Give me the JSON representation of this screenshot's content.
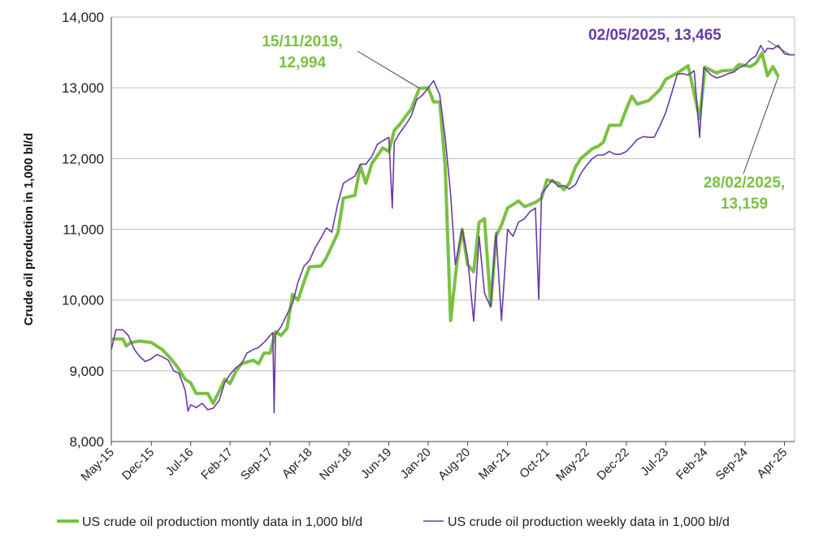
{
  "chart_data": {
    "type": "line",
    "title": "",
    "xlabel": "",
    "ylabel": "Crude oil production in 1,000 bl/d",
    "ylim": [
      8000,
      14000
    ],
    "yticks": [
      8000,
      9000,
      10000,
      11000,
      12000,
      13000,
      14000
    ],
    "ytick_labels": [
      "8,000",
      "9,000",
      "10,000",
      "11,000",
      "12,000",
      "13,000",
      "14,000"
    ],
    "xlim": [
      2015.33,
      2025.4
    ],
    "xticks": [
      {
        "label": "May-15",
        "pos": 2015.33
      },
      {
        "label": "Dec-15",
        "pos": 2015.92
      },
      {
        "label": "Jul-16",
        "pos": 2016.5
      },
      {
        "label": "Feb-17",
        "pos": 2017.08
      },
      {
        "label": "Sep-17",
        "pos": 2017.67
      },
      {
        "label": "Apr-18",
        "pos": 2018.25
      },
      {
        "label": "Nov-18",
        "pos": 2018.83
      },
      {
        "label": "Jun-19",
        "pos": 2019.42
      },
      {
        "label": "Jan-20",
        "pos": 2020.0
      },
      {
        "label": "Aug-20",
        "pos": 2020.58
      },
      {
        "label": "Mar-21",
        "pos": 2021.17
      },
      {
        "label": "Oct-21",
        "pos": 2021.75
      },
      {
        "label": "May-22",
        "pos": 2022.33
      },
      {
        "label": "Dec-22",
        "pos": 2022.92
      },
      {
        "label": "Jul-23",
        "pos": 2023.5
      },
      {
        "label": "Feb-24",
        "pos": 2024.08
      },
      {
        "label": "Sep-24",
        "pos": 2024.67
      },
      {
        "label": "Apr-25",
        "pos": 2025.25
      }
    ],
    "grid": true,
    "legend_position": "bottom",
    "colors": {
      "monthly": "#7ac143",
      "weekly": "#6a3aa7",
      "grid": "#bdbdbd",
      "axis": "#444444"
    },
    "series": [
      {
        "name": "US crude oil production montly data in 1,000 bl/d",
        "color": "#7ac143",
        "points": [
          [
            2015.33,
            9450
          ],
          [
            2015.5,
            9450
          ],
          [
            2015.55,
            9350
          ],
          [
            2015.62,
            9400
          ],
          [
            2015.75,
            9420
          ],
          [
            2015.92,
            9400
          ],
          [
            2016.08,
            9300
          ],
          [
            2016.2,
            9180
          ],
          [
            2016.3,
            9060
          ],
          [
            2016.42,
            8880
          ],
          [
            2016.5,
            8830
          ],
          [
            2016.58,
            8680
          ],
          [
            2016.75,
            8680
          ],
          [
            2016.83,
            8540
          ],
          [
            2016.92,
            8710
          ],
          [
            2017.0,
            8880
          ],
          [
            2017.08,
            8820
          ],
          [
            2017.17,
            9000
          ],
          [
            2017.25,
            9100
          ],
          [
            2017.42,
            9150
          ],
          [
            2017.5,
            9100
          ],
          [
            2017.58,
            9250
          ],
          [
            2017.67,
            9250
          ],
          [
            2017.75,
            9550
          ],
          [
            2017.83,
            9500
          ],
          [
            2017.92,
            9600
          ],
          [
            2018.0,
            10080
          ],
          [
            2018.08,
            10000
          ],
          [
            2018.17,
            10260
          ],
          [
            2018.25,
            10470
          ],
          [
            2018.42,
            10480
          ],
          [
            2018.5,
            10600
          ],
          [
            2018.67,
            10950
          ],
          [
            2018.75,
            11440
          ],
          [
            2018.92,
            11480
          ],
          [
            2019.0,
            11900
          ],
          [
            2019.08,
            11650
          ],
          [
            2019.17,
            11930
          ],
          [
            2019.33,
            12150
          ],
          [
            2019.42,
            12100
          ],
          [
            2019.5,
            12400
          ],
          [
            2019.58,
            12480
          ],
          [
            2019.67,
            12600
          ],
          [
            2019.75,
            12700
          ],
          [
            2019.87,
            12994
          ],
          [
            2020.0,
            13000
          ],
          [
            2020.08,
            12800
          ],
          [
            2020.17,
            12800
          ],
          [
            2020.25,
            11900
          ],
          [
            2020.33,
            9710
          ],
          [
            2020.42,
            10500
          ],
          [
            2020.5,
            11000
          ],
          [
            2020.58,
            10500
          ],
          [
            2020.67,
            10400
          ],
          [
            2020.75,
            11100
          ],
          [
            2020.83,
            11150
          ],
          [
            2020.92,
            9930
          ],
          [
            2021.0,
            10900
          ],
          [
            2021.08,
            11060
          ],
          [
            2021.17,
            11300
          ],
          [
            2021.33,
            11400
          ],
          [
            2021.42,
            11320
          ],
          [
            2021.58,
            11380
          ],
          [
            2021.67,
            11440
          ],
          [
            2021.75,
            11700
          ],
          [
            2021.92,
            11650
          ],
          [
            2022.0,
            11560
          ],
          [
            2022.08,
            11650
          ],
          [
            2022.17,
            11880
          ],
          [
            2022.25,
            12000
          ],
          [
            2022.42,
            12140
          ],
          [
            2022.5,
            12170
          ],
          [
            2022.58,
            12230
          ],
          [
            2022.67,
            12470
          ],
          [
            2022.83,
            12470
          ],
          [
            2022.92,
            12700
          ],
          [
            2023.0,
            12880
          ],
          [
            2023.08,
            12770
          ],
          [
            2023.25,
            12820
          ],
          [
            2023.42,
            12980
          ],
          [
            2023.5,
            13120
          ],
          [
            2023.67,
            13210
          ],
          [
            2023.83,
            13310
          ],
          [
            2024.0,
            12560
          ],
          [
            2024.08,
            13290
          ],
          [
            2024.25,
            13210
          ],
          [
            2024.33,
            13240
          ],
          [
            2024.5,
            13250
          ],
          [
            2024.58,
            13330
          ],
          [
            2024.75,
            13300
          ],
          [
            2024.83,
            13350
          ],
          [
            2024.92,
            13490
          ],
          [
            2025.0,
            13170
          ],
          [
            2025.08,
            13300
          ],
          [
            2025.16,
            13159
          ]
        ]
      },
      {
        "name": "US crude oil production weekly data in 1,000 bl/d",
        "color": "#6a3aa7",
        "points": [
          [
            2015.33,
            9300
          ],
          [
            2015.4,
            9580
          ],
          [
            2015.5,
            9580
          ],
          [
            2015.58,
            9500
          ],
          [
            2015.67,
            9300
          ],
          [
            2015.75,
            9200
          ],
          [
            2015.83,
            9130
          ],
          [
            2015.92,
            9170
          ],
          [
            2016.0,
            9230
          ],
          [
            2016.08,
            9200
          ],
          [
            2016.17,
            9150
          ],
          [
            2016.25,
            9000
          ],
          [
            2016.33,
            8960
          ],
          [
            2016.42,
            8720
          ],
          [
            2016.46,
            8430
          ],
          [
            2016.5,
            8520
          ],
          [
            2016.58,
            8480
          ],
          [
            2016.67,
            8540
          ],
          [
            2016.75,
            8450
          ],
          [
            2016.83,
            8470
          ],
          [
            2016.92,
            8580
          ],
          [
            2017.0,
            8830
          ],
          [
            2017.08,
            8950
          ],
          [
            2017.17,
            9050
          ],
          [
            2017.25,
            9100
          ],
          [
            2017.33,
            9250
          ],
          [
            2017.42,
            9300
          ],
          [
            2017.5,
            9330
          ],
          [
            2017.58,
            9400
          ],
          [
            2017.67,
            9500
          ],
          [
            2017.71,
            9540
          ],
          [
            2017.73,
            8410
          ],
          [
            2017.75,
            9520
          ],
          [
            2017.83,
            9620
          ],
          [
            2017.92,
            9800
          ],
          [
            2018.0,
            9950
          ],
          [
            2018.08,
            10250
          ],
          [
            2018.17,
            10480
          ],
          [
            2018.25,
            10560
          ],
          [
            2018.33,
            10730
          ],
          [
            2018.42,
            10880
          ],
          [
            2018.5,
            11020
          ],
          [
            2018.58,
            10960
          ],
          [
            2018.67,
            11370
          ],
          [
            2018.75,
            11650
          ],
          [
            2018.83,
            11700
          ],
          [
            2018.92,
            11750
          ],
          [
            2019.0,
            11920
          ],
          [
            2019.08,
            11920
          ],
          [
            2019.17,
            12030
          ],
          [
            2019.25,
            12200
          ],
          [
            2019.33,
            12250
          ],
          [
            2019.42,
            12300
          ],
          [
            2019.47,
            11300
          ],
          [
            2019.5,
            12230
          ],
          [
            2019.58,
            12360
          ],
          [
            2019.67,
            12480
          ],
          [
            2019.75,
            12600
          ],
          [
            2019.83,
            12830
          ],
          [
            2019.92,
            12900
          ],
          [
            2020.0,
            13000
          ],
          [
            2020.08,
            13100
          ],
          [
            2020.17,
            12900
          ],
          [
            2020.25,
            12300
          ],
          [
            2020.33,
            11500
          ],
          [
            2020.4,
            10500
          ],
          [
            2020.5,
            11000
          ],
          [
            2020.58,
            10600
          ],
          [
            2020.67,
            9700
          ],
          [
            2020.75,
            10900
          ],
          [
            2020.83,
            10100
          ],
          [
            2020.92,
            9900
          ],
          [
            2021.0,
            10960
          ],
          [
            2021.08,
            9710
          ],
          [
            2021.17,
            11000
          ],
          [
            2021.25,
            10900
          ],
          [
            2021.33,
            11100
          ],
          [
            2021.42,
            11150
          ],
          [
            2021.5,
            11250
          ],
          [
            2021.58,
            11300
          ],
          [
            2021.63,
            10010
          ],
          [
            2021.67,
            11500
          ],
          [
            2021.75,
            11600
          ],
          [
            2021.83,
            11700
          ],
          [
            2021.92,
            11600
          ],
          [
            2022.0,
            11620
          ],
          [
            2022.08,
            11570
          ],
          [
            2022.17,
            11630
          ],
          [
            2022.25,
            11790
          ],
          [
            2022.33,
            11900
          ],
          [
            2022.42,
            12000
          ],
          [
            2022.5,
            12050
          ],
          [
            2022.58,
            12050
          ],
          [
            2022.67,
            12100
          ],
          [
            2022.75,
            12060
          ],
          [
            2022.83,
            12060
          ],
          [
            2022.92,
            12100
          ],
          [
            2023.0,
            12180
          ],
          [
            2023.08,
            12270
          ],
          [
            2023.17,
            12310
          ],
          [
            2023.25,
            12300
          ],
          [
            2023.33,
            12300
          ],
          [
            2023.42,
            12470
          ],
          [
            2023.5,
            12650
          ],
          [
            2023.58,
            12900
          ],
          [
            2023.67,
            13190
          ],
          [
            2023.75,
            13200
          ],
          [
            2023.83,
            13180
          ],
          [
            2023.92,
            13240
          ],
          [
            2024.0,
            12300
          ],
          [
            2024.06,
            13290
          ],
          [
            2024.17,
            13180
          ],
          [
            2024.25,
            13140
          ],
          [
            2024.33,
            13160
          ],
          [
            2024.42,
            13200
          ],
          [
            2024.5,
            13220
          ],
          [
            2024.58,
            13280
          ],
          [
            2024.67,
            13320
          ],
          [
            2024.75,
            13400
          ],
          [
            2024.83,
            13450
          ],
          [
            2024.9,
            13600
          ],
          [
            2024.96,
            13500
          ],
          [
            2025.0,
            13560
          ],
          [
            2025.08,
            13550
          ],
          [
            2025.16,
            13600
          ],
          [
            2025.25,
            13480
          ],
          [
            2025.33,
            13465
          ],
          [
            2025.4,
            13465
          ]
        ]
      }
    ],
    "annotations": [
      {
        "text_line1": "15/11/2019,",
        "text_line2": "12,994",
        "color": "#7ac143",
        "x": 2019.87,
        "y": 12994
      },
      {
        "text_line1": "02/05/2025,  13,465",
        "text_line2": "",
        "color": "#6a3aa7",
        "x": 2025.33,
        "y": 13465
      },
      {
        "text_line1": "28/02/2025,",
        "text_line2": "13,159",
        "color": "#7ac143",
        "x": 2025.16,
        "y": 13159
      }
    ]
  }
}
